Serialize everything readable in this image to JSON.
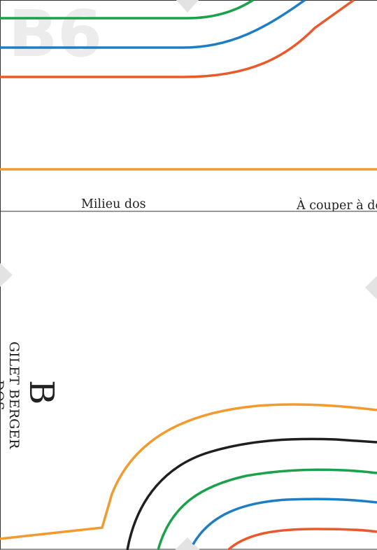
{
  "page_label": "B6",
  "top_panel": {
    "center_back_label": "Milieu dos",
    "cut_label": "À couper à dos"
  },
  "bottom_panel": {
    "piece_letter": "B",
    "garment_name": "GILET BERGER",
    "piece_name": "DOS"
  },
  "size_line_colors": {
    "orange": "#f29a2e",
    "black": "#1f1f1f",
    "green": "#1aa14a",
    "blue": "#1f7dc4",
    "red": "#e85a2b"
  },
  "frame_color": "#333333",
  "marker_color": "#e3e3e3"
}
